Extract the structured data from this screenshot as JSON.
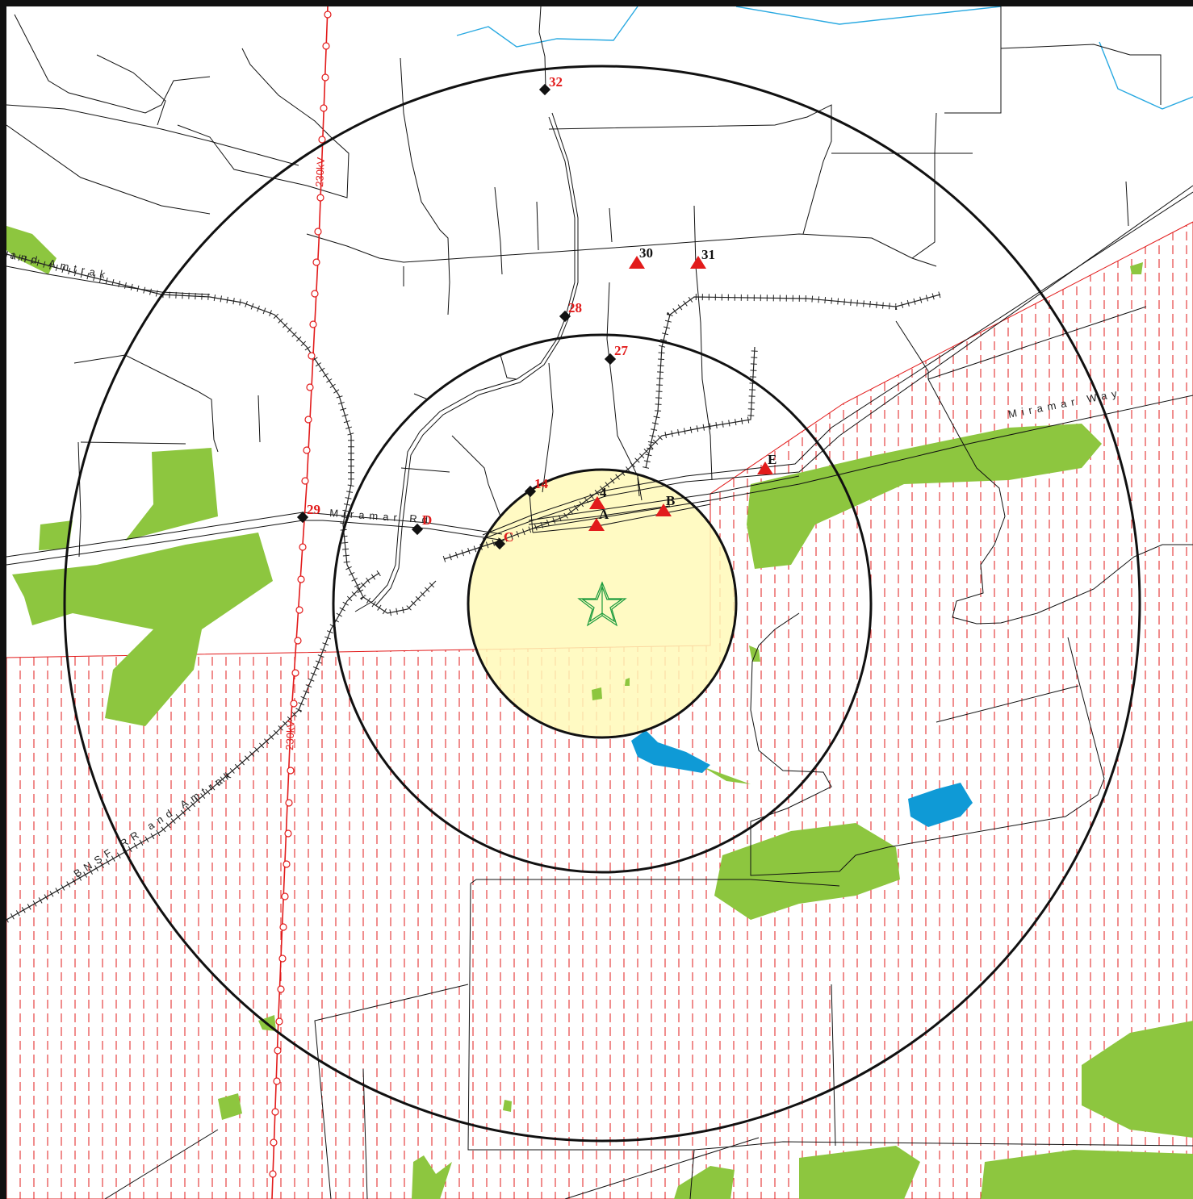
{
  "labels": {
    "road_miramar_rd": "Miramar Rd",
    "road_miramar_way": "Miramar Way",
    "rail_bnsf": "BNSF RR and Amtrak",
    "rail_amtrak_top": "and Amtrak",
    "power_line_top": "230kV",
    "power_line_bottom": "230kV"
  },
  "receptors": [
    {
      "id": "32",
      "type": "diamond"
    },
    {
      "id": "28",
      "type": "diamond"
    },
    {
      "id": "27",
      "type": "diamond"
    },
    {
      "id": "14",
      "type": "diamond"
    },
    {
      "id": "29",
      "type": "diamond"
    },
    {
      "id": "D",
      "type": "diamond"
    },
    {
      "id": "C",
      "type": "diamond"
    },
    {
      "id": "30",
      "type": "triangle"
    },
    {
      "id": "31",
      "type": "triangle"
    },
    {
      "id": "4",
      "type": "triangle"
    },
    {
      "id": "A",
      "type": "triangle"
    },
    {
      "id": "B",
      "type": "triangle"
    },
    {
      "id": "E",
      "type": "triangle"
    }
  ],
  "colors": {
    "vegetation": "#8dc63f",
    "water": "#0f9ad6",
    "stream": "#29a9e1",
    "hatch": "#e21b1b",
    "project_area": "#fff9b8",
    "site_star": "#1a9a3c",
    "marker_red": "#e21b1b",
    "marker_black": "#111111"
  }
}
